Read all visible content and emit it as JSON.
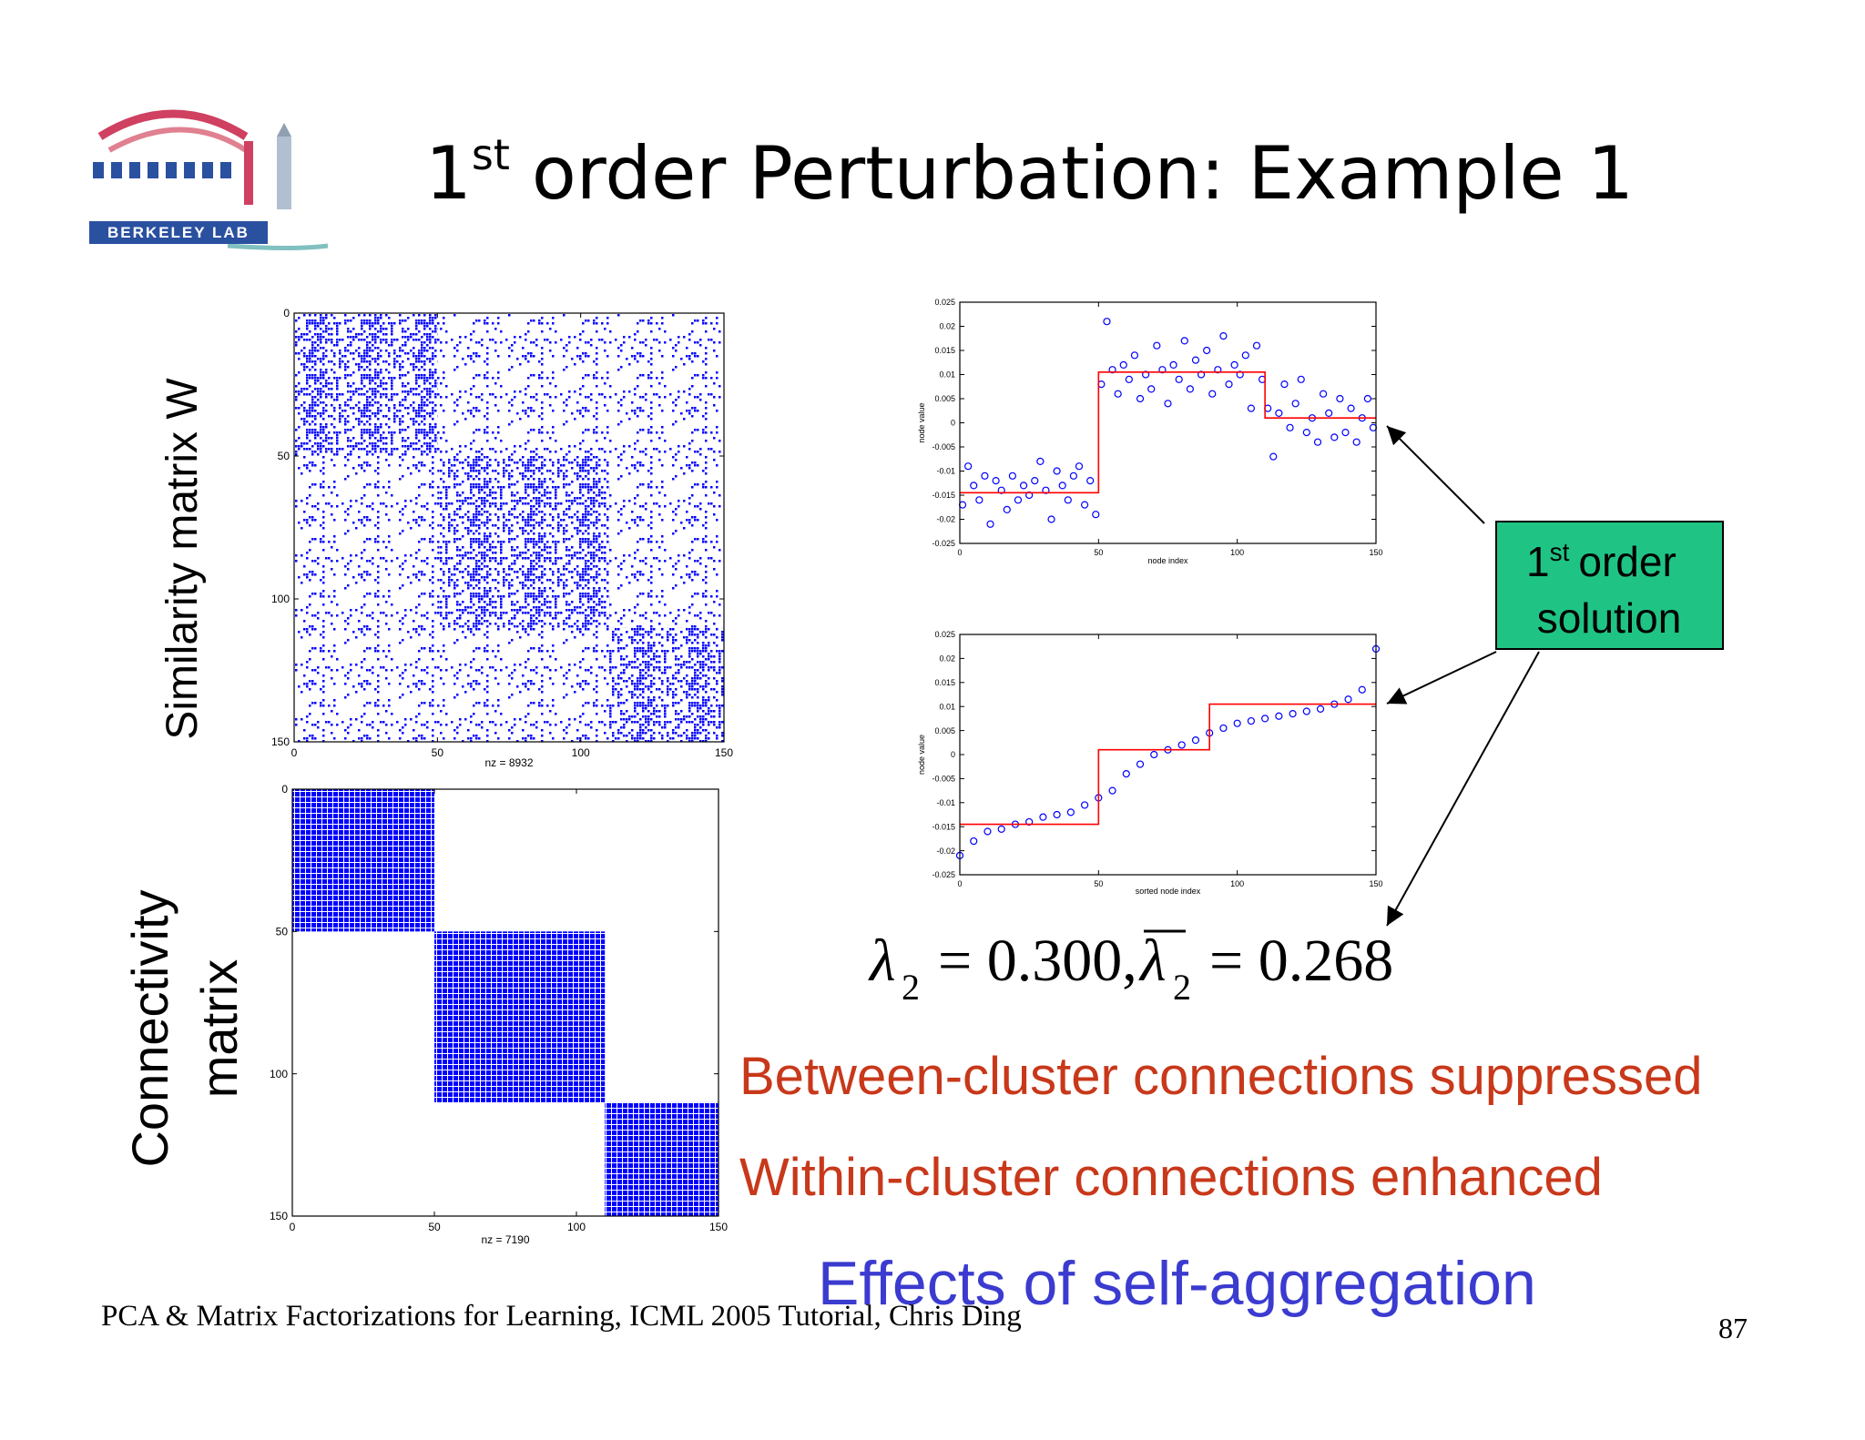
{
  "logo": {
    "text": "BERKELEY LAB"
  },
  "title": {
    "number": "1",
    "superscript": "st",
    "text": "order Perturbation:  Example 1"
  },
  "similarity_label": "Similarity matrix W",
  "connectivity_label": [
    "Connectivity",
    "matrix"
  ],
  "chart_data": [
    {
      "type": "spy",
      "xlabel": "nz = 8932",
      "xlim": [
        0,
        150
      ],
      "ylim": [
        0,
        150
      ],
      "yreverse": true,
      "xticks": [
        0,
        50,
        100,
        150
      ],
      "yticks": [
        0,
        50,
        100,
        150
      ],
      "color": "#0000ff",
      "blocks": [
        [
          0,
          50
        ],
        [
          50,
          110
        ],
        [
          110,
          150
        ]
      ]
    },
    {
      "type": "spy",
      "xlabel": "nz = 7190",
      "xlim": [
        0,
        150
      ],
      "ylim": [
        0,
        150
      ],
      "yreverse": true,
      "xticks": [
        0,
        50,
        100,
        150
      ],
      "yticks": [
        0,
        50,
        100,
        150
      ],
      "color": "#0000ff",
      "blocks": [
        [
          0,
          50
        ],
        [
          50,
          110
        ],
        [
          110,
          150
        ]
      ]
    },
    {
      "type": "scatter",
      "xlabel": "node index",
      "ylabel": "node value",
      "xlim": [
        0,
        150
      ],
      "ylim": [
        -0.025,
        0.025
      ],
      "xticks": [
        0,
        50,
        100,
        150
      ],
      "yticks": [
        -0.025,
        -0.02,
        -0.015,
        -0.01,
        -0.005,
        0,
        0.005,
        0.01,
        0.015,
        0.02,
        0.025
      ],
      "series": [
        {
          "style": "marker",
          "color": "#0000ff",
          "x": [
            1,
            3,
            5,
            7,
            9,
            11,
            13,
            15,
            17,
            19,
            21,
            23,
            25,
            27,
            29,
            31,
            33,
            35,
            37,
            39,
            41,
            43,
            45,
            47,
            49,
            51,
            53,
            55,
            57,
            59,
            61,
            63,
            65,
            67,
            69,
            71,
            73,
            75,
            77,
            79,
            81,
            83,
            85,
            87,
            89,
            91,
            93,
            95,
            97,
            99,
            101,
            103,
            105,
            107,
            109,
            111,
            113,
            115,
            117,
            119,
            121,
            123,
            125,
            127,
            129,
            131,
            133,
            135,
            137,
            139,
            141,
            143,
            145,
            147,
            149
          ],
          "values": [
            -0.017,
            -0.009,
            -0.013,
            -0.016,
            -0.011,
            -0.021,
            -0.012,
            -0.014,
            -0.018,
            -0.011,
            -0.016,
            -0.013,
            -0.015,
            -0.012,
            -0.008,
            -0.014,
            -0.02,
            -0.01,
            -0.013,
            -0.016,
            -0.011,
            -0.009,
            -0.017,
            -0.012,
            -0.019,
            0.008,
            0.021,
            0.011,
            0.006,
            0.012,
            0.009,
            0.014,
            0.005,
            0.01,
            0.007,
            0.016,
            0.011,
            0.004,
            0.012,
            0.009,
            0.017,
            0.007,
            0.013,
            0.01,
            0.015,
            0.006,
            0.011,
            0.018,
            0.008,
            0.012,
            0.01,
            0.014,
            0.003,
            0.016,
            0.009,
            0.003,
            -0.007,
            0.002,
            0.008,
            -0.001,
            0.004,
            0.009,
            -0.002,
            0.001,
            -0.004,
            0.006,
            0.002,
            -0.003,
            0.005,
            -0.002,
            0.003,
            -0.004,
            0.001,
            0.005,
            -0.001
          ]
        },
        {
          "style": "line",
          "color": "#ff0000",
          "x": [
            0,
            50,
            50,
            110,
            110,
            150
          ],
          "values": [
            -0.0145,
            -0.0145,
            0.0105,
            0.0105,
            0.001,
            0.001
          ]
        }
      ]
    },
    {
      "type": "scatter",
      "xlabel": "sorted node index",
      "ylabel": "node value",
      "xlim": [
        0,
        150
      ],
      "ylim": [
        -0.025,
        0.025
      ],
      "xticks": [
        0,
        50,
        100,
        150
      ],
      "yticks": [
        -0.025,
        -0.02,
        -0.015,
        -0.01,
        -0.005,
        0,
        0.005,
        0.01,
        0.015,
        0.02,
        0.025
      ],
      "series": [
        {
          "style": "marker",
          "color": "#0000ff",
          "x": [
            0,
            5,
            10,
            15,
            20,
            25,
            30,
            35,
            40,
            45,
            50,
            55,
            60,
            65,
            70,
            75,
            80,
            85,
            90,
            95,
            100,
            105,
            110,
            115,
            120,
            125,
            130,
            135,
            140,
            145,
            150
          ],
          "values": [
            -0.021,
            -0.018,
            -0.016,
            -0.0155,
            -0.0145,
            -0.014,
            -0.013,
            -0.0125,
            -0.012,
            -0.0105,
            -0.009,
            -0.0075,
            -0.004,
            -0.002,
            0,
            0.001,
            0.002,
            0.003,
            0.0045,
            0.0055,
            0.0065,
            0.007,
            0.0075,
            0.008,
            0.0085,
            0.009,
            0.0095,
            0.0105,
            0.0115,
            0.0135,
            0.022
          ]
        },
        {
          "style": "line",
          "color": "#ff0000",
          "x": [
            0,
            50,
            50,
            90,
            90,
            150
          ],
          "values": [
            -0.0145,
            -0.0145,
            0.001,
            0.001,
            0.0105,
            0.0105
          ]
        }
      ]
    }
  ],
  "callout": {
    "number": "1",
    "superscript": "st",
    "line1": "order",
    "line2": "solution"
  },
  "equation": {
    "symbol": "λ",
    "subscript": "2",
    "first": "= 0.300,",
    "second": "= 0.268"
  },
  "statements": [
    "Between-cluster connections suppressed",
    "Within-cluster connections enhanced"
  ],
  "conclusion": "Effects of self-aggregation",
  "footer": "PCA & Matrix Factorizations for Learning, ICML 2005 Tutorial, Chris Ding",
  "page_number": "87"
}
